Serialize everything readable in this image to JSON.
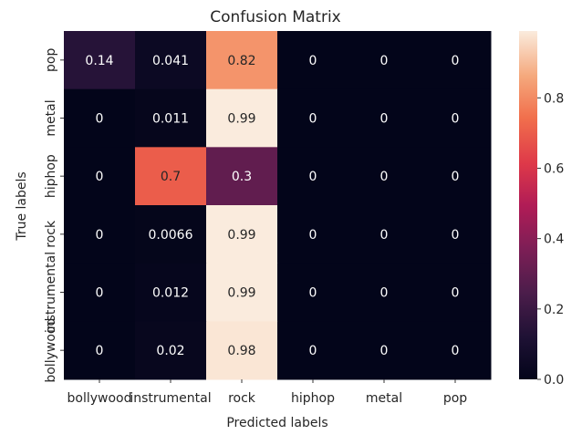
{
  "chart_data": {
    "type": "heatmap",
    "title": "Confusion Matrix",
    "xlabel": "Predicted labels",
    "ylabel": "True labels",
    "x_categories": [
      "bollywood",
      "instrumental",
      "rock",
      "hiphop",
      "metal",
      "pop"
    ],
    "y_categories": [
      "pop",
      "metal",
      "hiphop",
      "rock",
      "instrumental",
      "bollywood"
    ],
    "values": [
      [
        0.14,
        0.041,
        0.82,
        0,
        0,
        0
      ],
      [
        0,
        0.011,
        0.99,
        0,
        0,
        0
      ],
      [
        0,
        0.7,
        0.3,
        0,
        0,
        0
      ],
      [
        0,
        0.0066,
        0.99,
        0,
        0,
        0
      ],
      [
        0,
        0.012,
        0.99,
        0,
        0,
        0
      ],
      [
        0,
        0.02,
        0.98,
        0,
        0,
        0
      ]
    ],
    "value_labels": [
      [
        "0.14",
        "0.041",
        "0.82",
        "0",
        "0",
        "0"
      ],
      [
        "0",
        "0.011",
        "0.99",
        "0",
        "0",
        "0"
      ],
      [
        "0",
        "0.7",
        "0.3",
        "0",
        "0",
        "0"
      ],
      [
        "0",
        "0.0066",
        "0.99",
        "0",
        "0",
        "0"
      ],
      [
        "0",
        "0.012",
        "0.99",
        "0",
        "0",
        "0"
      ],
      [
        "0",
        "0.02",
        "0.98",
        "0",
        "0",
        "0"
      ]
    ],
    "colormap": "rocket",
    "colorbar": {
      "range": [
        0,
        0.99
      ],
      "ticks": [
        0.0,
        0.2,
        0.4,
        0.6,
        0.8
      ],
      "tick_labels": [
        "0.0",
        "0.2",
        "0.4",
        "0.6",
        "0.8"
      ]
    }
  }
}
